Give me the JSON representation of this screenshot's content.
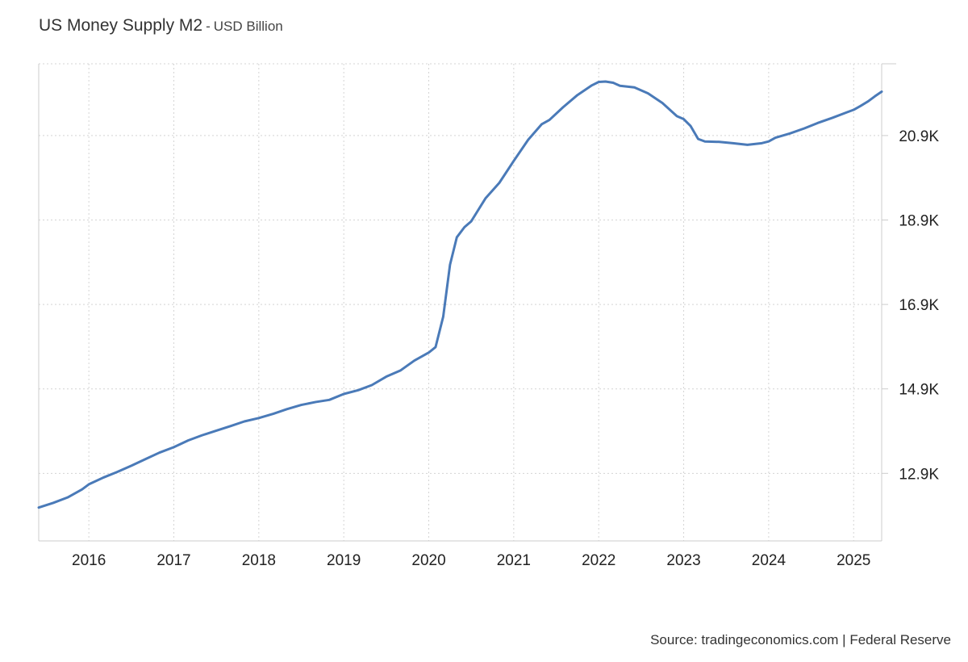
{
  "chart_data": {
    "type": "line",
    "title": "US Money Supply M2",
    "subtitle": "USD Billion",
    "xlabel": "",
    "ylabel": "",
    "source": "Source: tradingeconomics.com | Federal Reserve",
    "xlim": [
      2015.41,
      2025.33
    ],
    "ylim": [
      11300,
      22600
    ],
    "grid": true,
    "x_tick_values": [
      2016,
      2017,
      2018,
      2019,
      2020,
      2021,
      2022,
      2023,
      2024,
      2025
    ],
    "x_tick_labels": [
      "2016",
      "2017",
      "2018",
      "2019",
      "2020",
      "2021",
      "2022",
      "2023",
      "2024",
      "2025"
    ],
    "y_tick_values": [
      12900,
      14900,
      16900,
      18900,
      20900
    ],
    "y_tick_labels": [
      "12.9K",
      "14.9K",
      "16.9K",
      "18.9K",
      "20.9K"
    ],
    "line_color": "#4a7ab8",
    "series": [
      {
        "x": [
          2015.41,
          2015.58,
          2015.75,
          2015.92,
          2016.0,
          2016.17,
          2016.33,
          2016.5,
          2016.67,
          2016.83,
          2017.0,
          2017.17,
          2017.33,
          2017.5,
          2017.67,
          2017.83,
          2018.0,
          2018.17,
          2018.33,
          2018.5,
          2018.67,
          2018.83,
          2019.0,
          2019.17,
          2019.33,
          2019.5,
          2019.67,
          2019.83,
          2020.0,
          2020.08,
          2020.17,
          2020.25,
          2020.33,
          2020.42,
          2020.5,
          2020.58,
          2020.67,
          2020.83,
          2021.0,
          2021.17,
          2021.33,
          2021.42,
          2021.58,
          2021.75,
          2021.92,
          2022.0,
          2022.08,
          2022.17,
          2022.25,
          2022.42,
          2022.58,
          2022.75,
          2022.92,
          2023.0,
          2023.08,
          2023.17,
          2023.25,
          2023.42,
          2023.58,
          2023.75,
          2023.92,
          2024.0,
          2024.08,
          2024.25,
          2024.42,
          2024.58,
          2024.75,
          2024.92,
          2025.0,
          2025.08,
          2025.17,
          2025.25,
          2025.33
        ],
        "y": [
          12090,
          12200,
          12330,
          12520,
          12640,
          12800,
          12930,
          13080,
          13240,
          13390,
          13520,
          13680,
          13800,
          13910,
          14020,
          14130,
          14210,
          14310,
          14420,
          14520,
          14590,
          14640,
          14780,
          14870,
          14990,
          15190,
          15340,
          15570,
          15760,
          15890,
          16610,
          17840,
          18490,
          18730,
          18870,
          19130,
          19420,
          19780,
          20300,
          20800,
          21170,
          21270,
          21570,
          21860,
          22090,
          22170,
          22180,
          22150,
          22080,
          22040,
          21900,
          21670,
          21360,
          21290,
          21130,
          20820,
          20760,
          20750,
          20720,
          20680,
          20720,
          20760,
          20850,
          20950,
          21070,
          21200,
          21320,
          21450,
          21510,
          21600,
          21710,
          21830,
          21940
        ]
      }
    ]
  }
}
